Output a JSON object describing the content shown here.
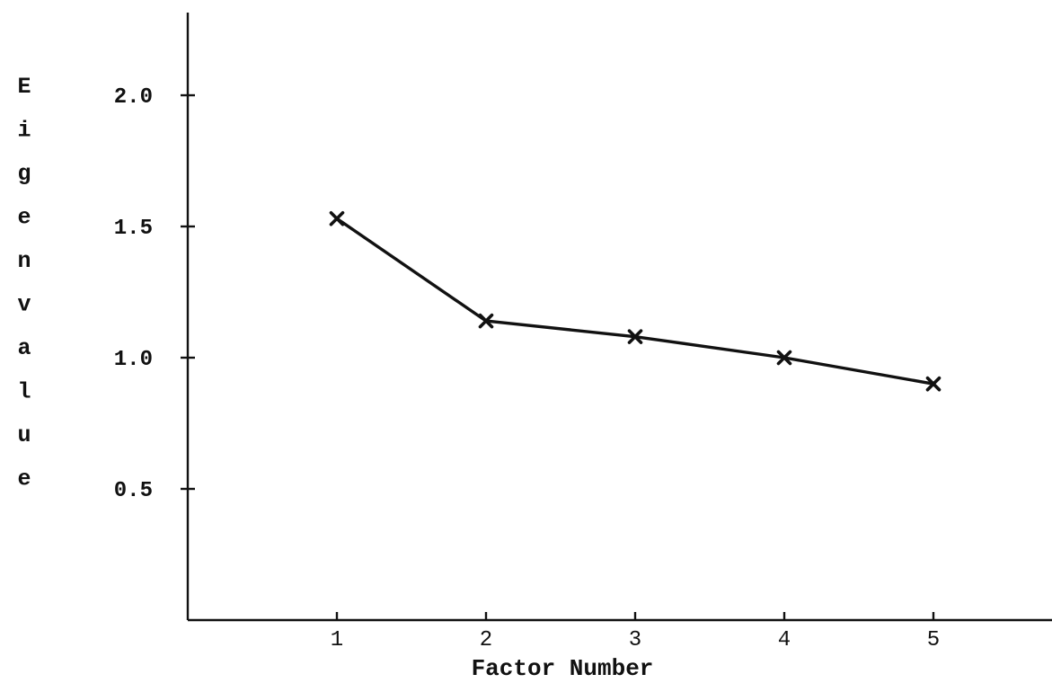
{
  "chart_data": {
    "type": "line",
    "title": "",
    "xlabel": "Factor Number",
    "ylabel": "Eigenvalue",
    "x": [
      1,
      2,
      3,
      4,
      5
    ],
    "x_tick_labels": [
      "1",
      "2",
      "3",
      "4",
      "5"
    ],
    "y_ticks": [
      0.5,
      1.0,
      1.5,
      2.0
    ],
    "y_tick_labels": [
      "0.5",
      "1.0",
      "1.5",
      "2.0"
    ],
    "series": [
      {
        "values": [
          1.53,
          1.14,
          1.08,
          1.0,
          0.9
        ]
      }
    ],
    "ylim": [
      0,
      2.3
    ],
    "xlim": [
      0,
      6
    ],
    "marker": "x",
    "grid": false,
    "legend": "none"
  }
}
